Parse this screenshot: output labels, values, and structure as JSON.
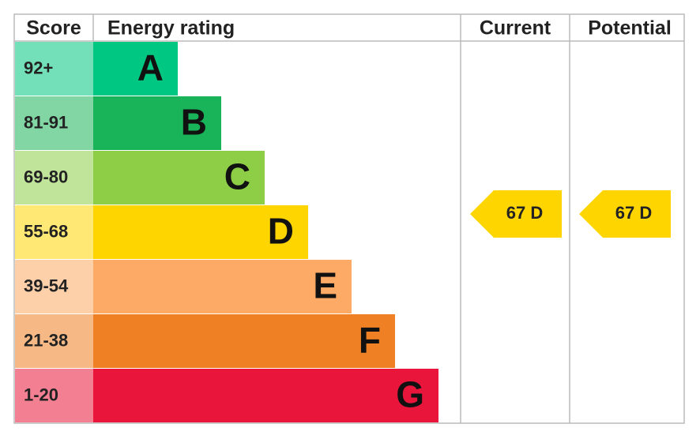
{
  "header": {
    "score": "Score",
    "rating": "Energy rating",
    "current": "Current",
    "potential": "Potential"
  },
  "rows": [
    {
      "score": "92+",
      "letter": "A",
      "color": "#00c781"
    },
    {
      "score": "81-91",
      "letter": "B",
      "color": "#19b459"
    },
    {
      "score": "69-80",
      "letter": "C",
      "color": "#8dce46"
    },
    {
      "score": "55-68",
      "letter": "D",
      "color": "#ffd500"
    },
    {
      "score": "39-54",
      "letter": "E",
      "color": "#fcaa65"
    },
    {
      "score": "21-38",
      "letter": "F",
      "color": "#ef8023"
    },
    {
      "score": "1-20",
      "letter": "G",
      "color": "#e9153b"
    }
  ],
  "current": {
    "label": "67 D"
  },
  "potential": {
    "label": "67 D"
  }
}
